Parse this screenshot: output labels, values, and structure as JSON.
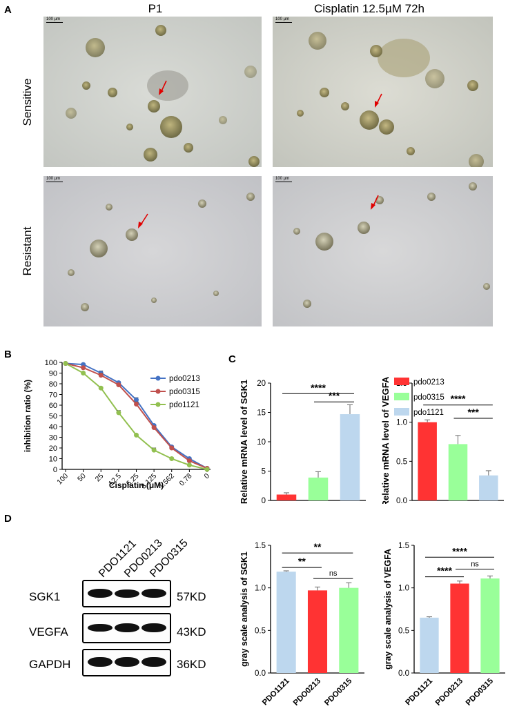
{
  "panel_letters": {
    "A": "A",
    "B": "B",
    "C": "C",
    "D": "D"
  },
  "panel_a": {
    "col_titles": [
      "P1",
      "Cisplatin 12.5µM 72h"
    ],
    "row_titles": [
      "Sensitive",
      "Resistant"
    ],
    "scale_label": "100 µm"
  },
  "western_blot": {
    "lanes": [
      "PDO1121",
      "PDO0213",
      "PDO0315"
    ],
    "rows": [
      {
        "protein": "SGK1",
        "size": "57KD"
      },
      {
        "protein": "VEGFA",
        "size": "43KD"
      },
      {
        "protein": "GAPDH",
        "size": "36KD"
      }
    ]
  },
  "colors": {
    "blue": "#4472c4",
    "red_line": "#c0504d",
    "green_line": "#92c050",
    "bar_red": "#ff3333",
    "bar_green": "#99ff99",
    "bar_blue": "#bdd7ee"
  },
  "chart_data": [
    {
      "type": "line",
      "panel": "B",
      "xlabel": "Cisplatin (μM)",
      "ylabel": "inhibition ratio (%)",
      "x": [
        "100",
        "50",
        "25",
        "12.5",
        "6.25",
        "3.125",
        "1.562",
        "0.78",
        "0"
      ],
      "yticks": [
        "0",
        "10",
        "20",
        "30",
        "40",
        "50",
        "60",
        "70",
        "80",
        "90",
        "100"
      ],
      "ylim": [
        0,
        100
      ],
      "legend_position": "right",
      "series": [
        {
          "name": "pdo0213",
          "color": "#4472c4",
          "values": [
            99,
            98,
            90,
            81,
            65,
            41,
            21,
            10,
            1
          ],
          "errors": [
            0,
            1,
            2,
            1,
            2,
            1,
            1,
            1,
            0
          ]
        },
        {
          "name": "pdo0315",
          "color": "#c0504d",
          "values": [
            99,
            95,
            88,
            79,
            61,
            39,
            20,
            8,
            1
          ],
          "errors": [
            0,
            1,
            2,
            1,
            2,
            1,
            1,
            1,
            0
          ]
        },
        {
          "name": "pdo1121",
          "color": "#92c050",
          "values": [
            99,
            90,
            76,
            53,
            32,
            18,
            10,
            4,
            0
          ],
          "errors": [
            0,
            1,
            1,
            2,
            1,
            2,
            1,
            1,
            0
          ]
        }
      ]
    },
    {
      "type": "bar",
      "panel": "C",
      "ylabel": "Relative mRNA level of SGK1",
      "categories": [
        "pdo0213",
        "pdo0315",
        "pdo1121"
      ],
      "values": [
        1.0,
        3.9,
        14.7
      ],
      "errors": [
        0.3,
        1.0,
        1.6
      ],
      "colors": [
        "#ff3333",
        "#99ff99",
        "#bdd7ee"
      ],
      "yticks": [
        "0",
        "5",
        "10",
        "15",
        "20"
      ],
      "ylim": [
        0,
        20
      ],
      "significance": [
        {
          "from": 0,
          "to": 2,
          "label": "****",
          "y": 18.2
        },
        {
          "from": 1,
          "to": 2,
          "label": "***",
          "y": 16.8
        }
      ]
    },
    {
      "type": "bar",
      "panel": "C",
      "ylabel": "Relative mRNA level of VEGFA",
      "categories": [
        "pdo0213",
        "pdo0315",
        "pdo1121"
      ],
      "values": [
        1.0,
        0.72,
        0.32
      ],
      "errors": [
        0.03,
        0.11,
        0.06
      ],
      "colors": [
        "#ff3333",
        "#99ff99",
        "#bdd7ee"
      ],
      "yticks": [
        "0.0",
        "0.5",
        "1.0",
        "1.5"
      ],
      "ylim": [
        0,
        1.5
      ],
      "legend": [
        "pdo0213",
        "pdo0315",
        "pdo1121"
      ],
      "legend_position": "top-right",
      "significance": [
        {
          "from": 0,
          "to": 2,
          "label": "****",
          "y": 1.22
        },
        {
          "from": 1,
          "to": 2,
          "label": "***",
          "y": 1.05
        }
      ]
    },
    {
      "type": "bar",
      "panel": "D",
      "ylabel": "gray scale analysis of SGK1",
      "categories": [
        "PDO1121",
        "PDO0213",
        "PDO0315"
      ],
      "values": [
        1.19,
        0.97,
        1.0
      ],
      "errors": [
        0.01,
        0.04,
        0.06
      ],
      "colors": [
        "#bdd7ee",
        "#ff3333",
        "#99ff99"
      ],
      "yticks": [
        "0.0",
        "0.5",
        "1.0",
        "1.5"
      ],
      "ylim": [
        0,
        1.5
      ],
      "significance": [
        {
          "from": 0,
          "to": 2,
          "label": "**",
          "y": 1.41
        },
        {
          "from": 0,
          "to": 1,
          "label": "**",
          "y": 1.24
        },
        {
          "from": 1,
          "to": 2,
          "label": "ns",
          "y": 1.11
        }
      ]
    },
    {
      "type": "bar",
      "panel": "D",
      "ylabel": "gray scale analysis of VEGFA",
      "categories": [
        "PDO1121",
        "PDO0213",
        "PDO0315"
      ],
      "values": [
        0.65,
        1.05,
        1.11
      ],
      "errors": [
        0.01,
        0.03,
        0.03
      ],
      "colors": [
        "#bdd7ee",
        "#ff3333",
        "#99ff99"
      ],
      "yticks": [
        "0.0",
        "0.5",
        "1.0",
        "1.5"
      ],
      "ylim": [
        0,
        1.5
      ],
      "significance": [
        {
          "from": 0,
          "to": 2,
          "label": "****",
          "y": 1.36
        },
        {
          "from": 1,
          "to": 2,
          "label": "ns",
          "y": 1.22
        },
        {
          "from": 0,
          "to": 1,
          "label": "****",
          "y": 1.13
        }
      ]
    }
  ]
}
